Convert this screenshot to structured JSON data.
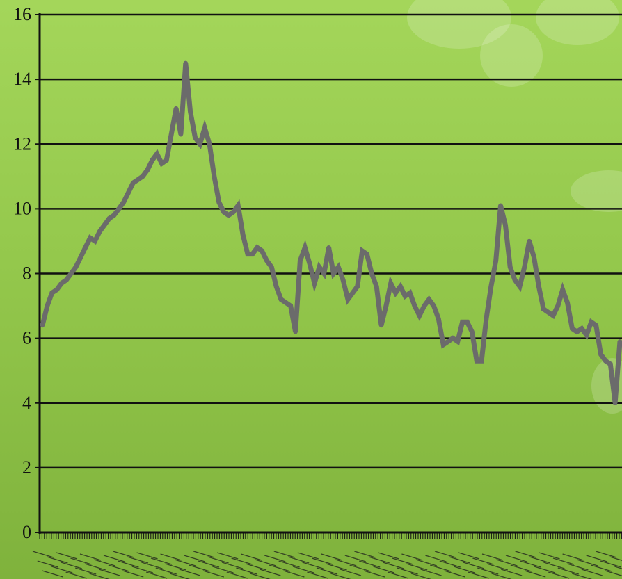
{
  "chart_data": {
    "type": "line",
    "title": "",
    "xlabel": "",
    "ylabel": "",
    "ylim": [
      0,
      16
    ],
    "y_ticks": [
      "0",
      "2",
      "4",
      "6",
      "8",
      "10",
      "12",
      "14",
      "16"
    ],
    "grid": true,
    "x_tick_labels_legible": false,
    "colors": {
      "line": "#6b6b6b",
      "grid": "#111111",
      "axis": "#111111",
      "background_top": "#a4d65a",
      "background_bottom": "#7fb23c"
    },
    "series": [
      {
        "values": [
          6.4,
          7.0,
          7.4,
          7.5,
          7.7,
          7.8,
          8.0,
          8.2,
          8.5,
          8.8,
          9.1,
          9.0,
          9.3,
          9.5,
          9.7,
          9.8,
          10.0,
          10.2,
          10.5,
          10.8,
          10.9,
          11.0,
          11.2,
          11.5,
          11.7,
          11.4,
          11.5,
          12.3,
          13.1,
          12.3,
          14.5,
          13.0,
          12.2,
          12.0,
          12.5,
          12.0,
          11.0,
          10.2,
          9.9,
          9.8,
          9.9,
          10.1,
          9.2,
          8.6,
          8.6,
          8.8,
          8.7,
          8.4,
          8.2,
          7.6,
          7.2,
          7.1,
          7.0,
          6.2,
          8.4,
          8.8,
          8.3,
          7.7,
          8.2,
          8.0,
          8.8,
          8.0,
          8.2,
          7.8,
          7.2,
          7.4,
          7.6,
          8.7,
          8.6,
          8.0,
          7.6,
          6.4,
          7.0,
          7.7,
          7.4,
          7.6,
          7.3,
          7.4,
          7.0,
          6.7,
          7.0,
          7.2,
          7.0,
          6.6,
          5.8,
          5.9,
          6.0,
          5.9,
          6.5,
          6.5,
          6.2,
          5.3,
          5.3,
          6.6,
          7.6,
          8.4,
          10.1,
          9.5,
          8.2,
          7.8,
          7.6,
          8.2,
          9.0,
          8.5,
          7.6,
          6.9,
          6.8,
          6.7,
          7.0,
          7.5,
          7.1,
          6.3,
          6.2,
          6.3,
          6.1,
          6.5,
          6.4,
          5.5,
          5.3,
          5.2,
          4.0,
          5.9
        ]
      }
    ]
  }
}
